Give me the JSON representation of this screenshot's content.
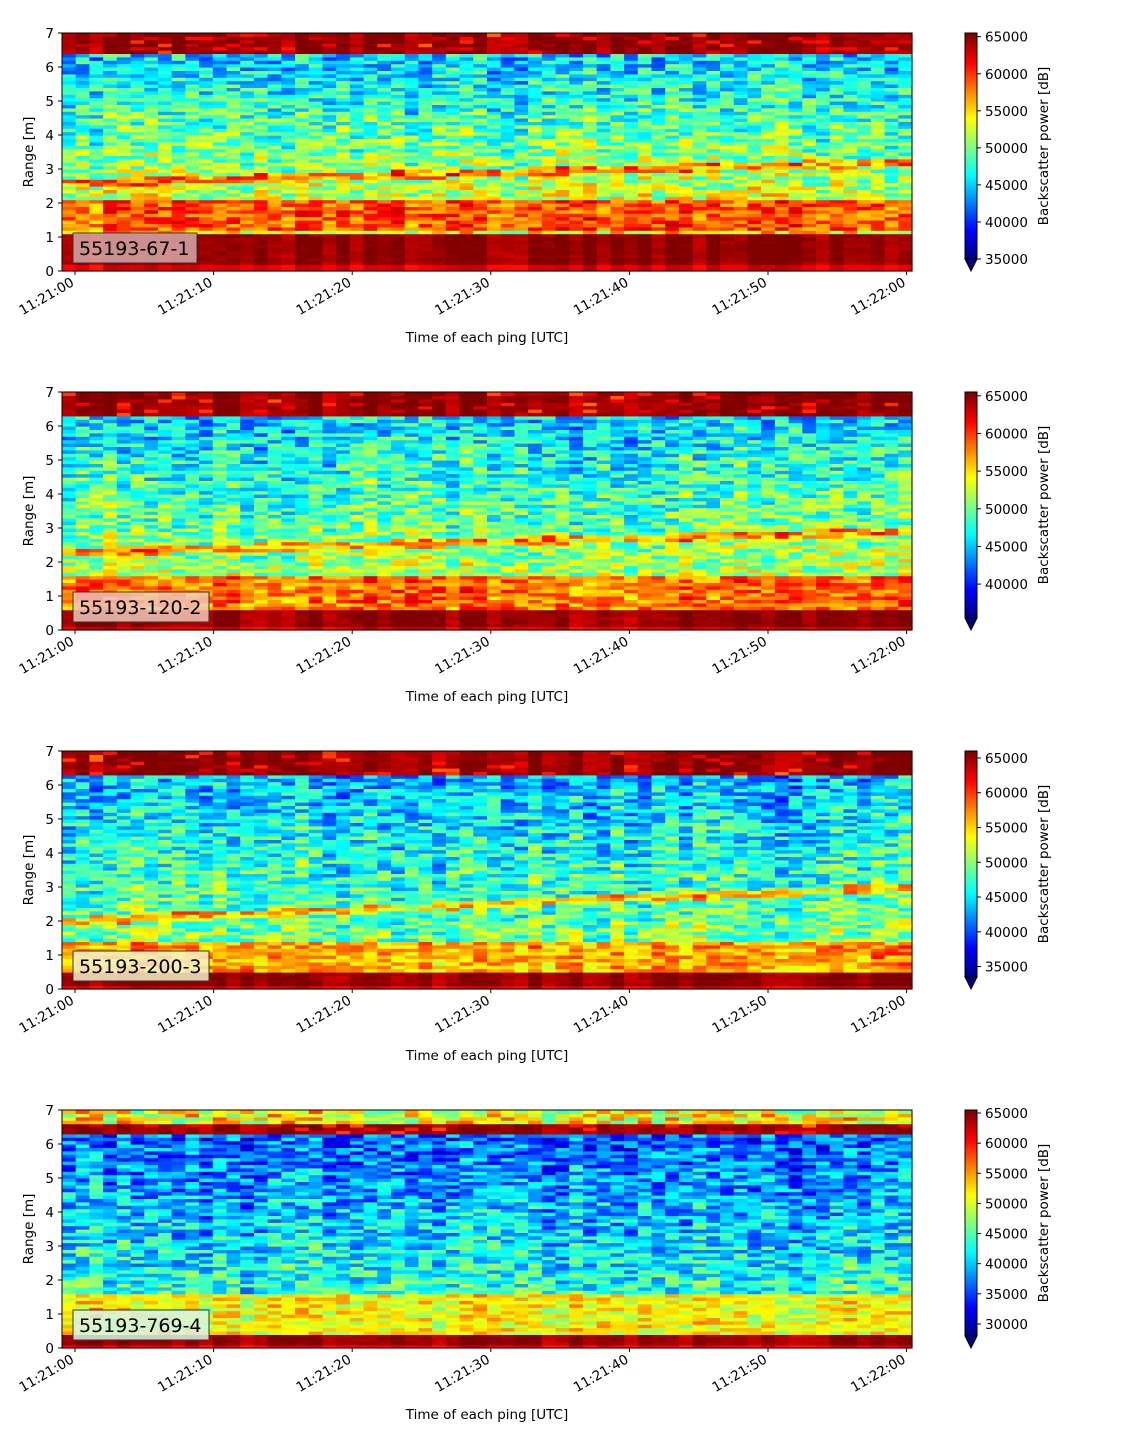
{
  "chart_data": [
    {
      "type": "heatmap",
      "label": "55193-67-1",
      "xlabel": "Time of each ping [UTC]",
      "ylabel": "Range [m]",
      "xlim": [
        "11:21:00",
        "11:22:00"
      ],
      "xticks": [
        "11:21:00",
        "11:21:10",
        "11:21:20",
        "11:21:30",
        "11:21:40",
        "11:21:50",
        "11:22:00"
      ],
      "ylim": [
        0,
        7
      ],
      "yticks": [
        "0",
        "1",
        "2",
        "3",
        "4",
        "5",
        "6",
        "7"
      ],
      "colormap": "jet",
      "colorbar": {
        "label": "Backscatter power [dB]",
        "vmin": 35000,
        "vmax": 65500,
        "ticks": [
          "35000",
          "40000",
          "45000",
          "50000",
          "55000",
          "60000",
          "65000"
        ],
        "extend": "min"
      },
      "label_box_color": "#d8a8a8",
      "profile": {
        "surface_band_m": [
          6.45,
          7.0
        ],
        "bottom_band_m": [
          0.25,
          1.1
        ],
        "bright_layer_m": [
          1.2,
          2.1
        ],
        "slanted_trace_start_m": 2.6,
        "slanted_trace_end_m": 3.2,
        "upper_water_level": 0.32,
        "lower_water_level": 0.58
      }
    },
    {
      "type": "heatmap",
      "label": "55193-120-2",
      "xlabel": "Time of each ping [UTC]",
      "ylabel": "Range [m]",
      "xlim": [
        "11:21:00",
        "11:22:00"
      ],
      "xticks": [
        "11:21:00",
        "11:21:10",
        "11:21:20",
        "11:21:30",
        "11:21:40",
        "11:21:50",
        "11:22:00"
      ],
      "ylim": [
        0,
        7
      ],
      "yticks": [
        "0",
        "1",
        "2",
        "3",
        "4",
        "5",
        "6",
        "7"
      ],
      "colormap": "jet",
      "colorbar": {
        "label": "Backscatter power [dB]",
        "vmin": 35500,
        "vmax": 65500,
        "ticks": [
          "40000",
          "45000",
          "50000",
          "55000",
          "60000",
          "65000"
        ],
        "extend": "min"
      },
      "label_box_color": "#f0c8b8",
      "profile": {
        "surface_band_m": [
          6.35,
          7.0
        ],
        "bottom_band_m": [
          0.1,
          0.55
        ],
        "bright_layer_m": [
          0.55,
          1.6
        ],
        "slanted_trace_start_m": 2.3,
        "slanted_trace_end_m": 2.9,
        "upper_water_level": 0.33,
        "lower_water_level": 0.55
      }
    },
    {
      "type": "heatmap",
      "label": "55193-200-3",
      "xlabel": "Time of each ping [UTC]",
      "ylabel": "Range [m]",
      "xlim": [
        "11:21:00",
        "11:22:00"
      ],
      "xticks": [
        "11:21:00",
        "11:21:10",
        "11:21:20",
        "11:21:30",
        "11:21:40",
        "11:21:50",
        "11:22:00"
      ],
      "ylim": [
        0,
        7
      ],
      "yticks": [
        "0",
        "1",
        "2",
        "3",
        "4",
        "5",
        "6",
        "7"
      ],
      "colormap": "jet",
      "colorbar": {
        "label": "Backscatter power [dB]",
        "vmin": 33500,
        "vmax": 66000,
        "ticks": [
          "35000",
          "40000",
          "45000",
          "50000",
          "55000",
          "60000",
          "65000"
        ],
        "extend": "min"
      },
      "label_box_color": "#f5f0c8",
      "profile": {
        "surface_band_m": [
          6.3,
          6.95
        ],
        "bottom_band_m": [
          0.15,
          0.45
        ],
        "bright_layer_m": [
          0.45,
          1.4
        ],
        "slanted_trace_start_m": 2.0,
        "slanted_trace_end_m": 3.0,
        "upper_water_level": 0.3,
        "lower_water_level": 0.5
      }
    },
    {
      "type": "heatmap",
      "label": "55193-769-4",
      "xlabel": "Time of each ping [UTC]",
      "ylabel": "Range [m]",
      "xlim": [
        "11:21:00",
        "11:22:00"
      ],
      "xticks": [
        "11:21:00",
        "11:21:10",
        "11:21:20",
        "11:21:30",
        "11:21:40",
        "11:21:50",
        "11:22:00"
      ],
      "ylim": [
        0,
        7
      ],
      "yticks": [
        "0",
        "1",
        "2",
        "3",
        "4",
        "5",
        "6",
        "7"
      ],
      "colormap": "jet",
      "colorbar": {
        "label": "Backscatter power [dB]",
        "vmin": 28000,
        "vmax": 65500,
        "ticks": [
          "30000",
          "35000",
          "40000",
          "45000",
          "50000",
          "55000",
          "60000",
          "65000"
        ],
        "extend": "min"
      },
      "label_box_color": "#d8f5e8",
      "profile": {
        "surface_band_m": [
          6.3,
          6.6
        ],
        "bottom_band_m": [
          0.15,
          0.4
        ],
        "bright_layer_m": [
          0.4,
          1.6
        ],
        "slanted_trace_start_m": 0,
        "slanted_trace_end_m": 0,
        "upper_water_level": 0.22,
        "lower_water_level": 0.42
      }
    }
  ]
}
